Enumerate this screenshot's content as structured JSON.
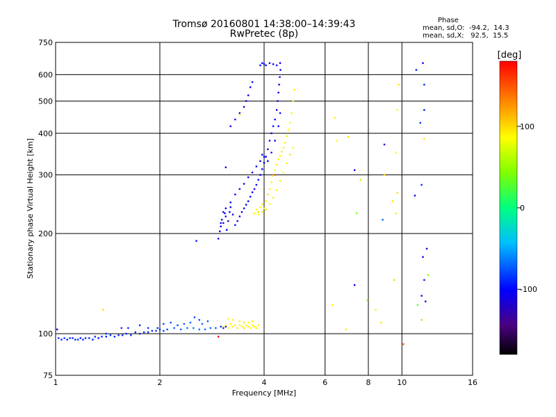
{
  "chart_data": {
    "type": "scatter",
    "title": "Tromsø 20160801 14:38:00–14:39:43",
    "subtitle": "RwPretec (8p)",
    "xlabel": "Frequency [MHz]",
    "ylabel": "Stationary phase Virtual Height [km]",
    "x_scale": "log",
    "y_scale": "log",
    "xlim": [
      1,
      16
    ],
    "ylim": [
      75,
      750
    ],
    "x_ticks": [
      1,
      2,
      4,
      6,
      8,
      10,
      16
    ],
    "x_tick_labels": [
      "1",
      "2",
      "4",
      "6",
      "8",
      "10",
      "16"
    ],
    "y_ticks": [
      75,
      100,
      200,
      300,
      400,
      500,
      600,
      750
    ],
    "y_tick_labels": [
      "75",
      "100",
      "200",
      "300",
      "400",
      "500",
      "600",
      "750"
    ],
    "grid": true,
    "phase_box": {
      "title": "Phase",
      "line_o": "mean, sd,O:  -94.2,  14.3",
      "line_x": "mean, sd,X:   92.5,  15.5"
    },
    "colorbar": {
      "label": "[deg]",
      "range": [
        -180,
        180
      ],
      "ticks": [
        100,
        0,
        -100
      ],
      "tick_labels": [
        "100",
        "0",
        "-100"
      ]
    },
    "series": [
      {
        "name": "O",
        "points": [
          [
            1.02,
            97,
            -90
          ],
          [
            1.04,
            96,
            -92
          ],
          [
            1.06,
            97,
            -88
          ],
          [
            1.08,
            96,
            -95
          ],
          [
            1.1,
            97,
            -90
          ],
          [
            1.12,
            97,
            -93
          ],
          [
            1.14,
            96,
            -91
          ],
          [
            1.16,
            96,
            -89
          ],
          [
            1.18,
            97,
            -94
          ],
          [
            1.2,
            96,
            -92
          ],
          [
            1.22,
            97,
            -90
          ],
          [
            1.25,
            97,
            -91
          ],
          [
            1.28,
            96,
            -93
          ],
          [
            1.3,
            98,
            -88
          ],
          [
            1.33,
            97,
            -95
          ],
          [
            1.36,
            98,
            -90
          ],
          [
            1.4,
            98,
            -92
          ],
          [
            1.44,
            99,
            -89
          ],
          [
            1.48,
            98,
            -94
          ],
          [
            1.52,
            99,
            -91
          ],
          [
            1.56,
            99,
            -90
          ],
          [
            1.6,
            100,
            -92
          ],
          [
            1.65,
            99,
            -87
          ],
          [
            1.7,
            101,
            -93
          ],
          [
            1.75,
            100,
            -90
          ],
          [
            1.8,
            101,
            -88
          ],
          [
            1.85,
            101,
            -92
          ],
          [
            1.9,
            102,
            -90
          ],
          [
            1.95,
            102,
            -86
          ],
          [
            2.0,
            103,
            -84
          ],
          [
            2.05,
            102,
            -80
          ],
          [
            2.1,
            103,
            -78
          ],
          [
            2.2,
            104,
            -72
          ],
          [
            2.3,
            103,
            -70
          ],
          [
            2.4,
            104,
            -66
          ],
          [
            2.5,
            104,
            -62
          ],
          [
            2.6,
            103,
            -64
          ],
          [
            2.7,
            103,
            -66
          ],
          [
            2.8,
            104,
            -70
          ],
          [
            2.9,
            104,
            -74
          ],
          [
            3.0,
            105,
            -88
          ],
          [
            3.05,
            104,
            -95
          ],
          [
            3.1,
            105,
            -100
          ],
          [
            1.01,
            103,
            -100
          ],
          [
            1.4,
            100,
            -85
          ],
          [
            1.55,
            104,
            -88
          ],
          [
            1.62,
            104,
            -92
          ],
          [
            1.75,
            106,
            -90
          ],
          [
            1.85,
            104,
            -85
          ],
          [
            1.97,
            104,
            -90
          ],
          [
            2.05,
            107,
            -82
          ],
          [
            2.15,
            108,
            -78
          ],
          [
            2.25,
            106,
            -80
          ],
          [
            2.35,
            107,
            -75
          ],
          [
            2.45,
            108,
            -70
          ],
          [
            2.52,
            112,
            -80
          ],
          [
            2.6,
            110,
            -76
          ],
          [
            2.65,
            107,
            -72
          ],
          [
            2.75,
            109,
            -74
          ],
          [
            2.95,
            193,
            -110
          ],
          [
            2.98,
            203,
            -108
          ],
          [
            3.0,
            210,
            -112
          ],
          [
            3.02,
            220,
            -106
          ],
          [
            3.05,
            215,
            -118
          ],
          [
            3.08,
            230,
            -104
          ],
          [
            3.1,
            225,
            -112
          ],
          [
            3.12,
            205,
            -100
          ],
          [
            3.15,
            218,
            -120
          ],
          [
            3.18,
            232,
            -108
          ],
          [
            3.2,
            240,
            -104
          ],
          [
            3.25,
            228,
            -114
          ],
          [
            3.3,
            212,
            -106
          ],
          [
            3.35,
            218,
            -110
          ],
          [
            3.4,
            225,
            -104
          ],
          [
            3.45,
            232,
            -108
          ],
          [
            3.5,
            238,
            -100
          ],
          [
            3.55,
            244,
            -104
          ],
          [
            3.6,
            250,
            -110
          ],
          [
            3.65,
            258,
            -98
          ],
          [
            3.7,
            266,
            -104
          ],
          [
            3.75,
            272,
            -108
          ],
          [
            3.8,
            280,
            -100
          ],
          [
            3.85,
            290,
            -96
          ],
          [
            3.9,
            300,
            -104
          ],
          [
            3.95,
            312,
            -100
          ],
          [
            4.0,
            326,
            -98
          ],
          [
            4.05,
            340,
            -104
          ],
          [
            4.1,
            358,
            -100
          ],
          [
            4.15,
            380,
            -96
          ],
          [
            4.2,
            400,
            -102
          ],
          [
            4.25,
            420,
            -98
          ],
          [
            4.3,
            440,
            -100
          ],
          [
            4.35,
            470,
            -104
          ],
          [
            4.38,
            500,
            -98
          ],
          [
            4.4,
            530,
            -100
          ],
          [
            4.42,
            560,
            -102
          ],
          [
            4.44,
            590,
            -96
          ],
          [
            4.46,
            620,
            -100
          ],
          [
            3.0,
            215,
            -106
          ],
          [
            3.05,
            232,
            -110
          ],
          [
            3.1,
            238,
            -104
          ],
          [
            3.2,
            248,
            -108
          ],
          [
            3.3,
            262,
            -100
          ],
          [
            3.4,
            272,
            -106
          ],
          [
            3.5,
            282,
            -104
          ],
          [
            3.6,
            295,
            -100
          ],
          [
            3.7,
            305,
            -106
          ],
          [
            3.8,
            318,
            -100
          ],
          [
            3.9,
            330,
            -104
          ],
          [
            3.95,
            345,
            -98
          ],
          [
            4.0,
            340,
            -106
          ],
          [
            4.1,
            330,
            -102
          ],
          [
            4.2,
            350,
            -98
          ],
          [
            4.3,
            380,
            -104
          ],
          [
            4.4,
            420,
            -100
          ],
          [
            4.45,
            460,
            -96
          ],
          [
            3.2,
            420,
            -104
          ],
          [
            3.3,
            440,
            -100
          ],
          [
            3.4,
            460,
            -106
          ],
          [
            3.5,
            480,
            -102
          ],
          [
            3.55,
            500,
            -108
          ],
          [
            3.6,
            520,
            -100
          ],
          [
            3.65,
            550,
            -104
          ],
          [
            3.7,
            570,
            -98
          ],
          [
            3.9,
            640,
            -100
          ],
          [
            3.95,
            650,
            -104
          ],
          [
            4.0,
            645,
            -98
          ],
          [
            4.05,
            640,
            -102
          ],
          [
            4.15,
            650,
            -100
          ],
          [
            4.25,
            645,
            -106
          ],
          [
            4.35,
            640,
            -100
          ],
          [
            4.45,
            650,
            -104
          ],
          [
            3.1,
            316,
            -110
          ],
          [
            2.55,
            190,
            -96
          ],
          [
            11.0,
            620,
            -95
          ],
          [
            11.5,
            650,
            -100
          ],
          [
            11.6,
            560,
            -90
          ],
          [
            11.3,
            430,
            -85
          ],
          [
            11.6,
            470,
            -95
          ],
          [
            11.4,
            280,
            -90
          ],
          [
            11.8,
            180,
            -110
          ],
          [
            11.5,
            170,
            -100
          ],
          [
            11.6,
            145,
            -95
          ],
          [
            11.4,
            130,
            -100
          ],
          [
            11.7,
            125,
            -120
          ],
          [
            7.3,
            310,
            -110
          ],
          [
            8.9,
            370,
            -110
          ],
          [
            8.8,
            220,
            -70
          ],
          [
            7.3,
            140,
            -110
          ],
          [
            10.9,
            260,
            -100
          ]
        ]
      },
      {
        "name": "X",
        "points": [
          [
            3.05,
            105,
            90
          ],
          [
            3.1,
            106,
            95
          ],
          [
            3.15,
            104,
            88
          ],
          [
            3.2,
            107,
            92
          ],
          [
            3.25,
            105,
            90
          ],
          [
            3.3,
            106,
            96
          ],
          [
            3.35,
            104,
            93
          ],
          [
            3.4,
            106,
            89
          ],
          [
            3.45,
            105,
            92
          ],
          [
            3.5,
            104,
            95
          ],
          [
            3.55,
            106,
            90
          ],
          [
            3.6,
            105,
            93
          ],
          [
            3.65,
            104,
            88
          ],
          [
            3.7,
            106,
            91
          ],
          [
            3.75,
            105,
            94
          ],
          [
            3.8,
            104,
            90
          ],
          [
            3.85,
            106,
            92
          ],
          [
            3.15,
            111,
            85
          ],
          [
            3.25,
            110,
            92
          ],
          [
            3.4,
            109,
            88
          ],
          [
            3.5,
            108,
            94
          ],
          [
            3.6,
            108,
            86
          ],
          [
            3.7,
            109,
            92
          ],
          [
            3.75,
            230,
            92
          ],
          [
            3.8,
            236,
            88
          ],
          [
            3.85,
            232,
            95
          ],
          [
            3.9,
            240,
            90
          ],
          [
            3.95,
            245,
            93
          ],
          [
            4.0,
            238,
            88
          ],
          [
            4.05,
            250,
            92
          ],
          [
            4.1,
            262,
            95
          ],
          [
            4.15,
            272,
            90
          ],
          [
            4.2,
            285,
            93
          ],
          [
            4.25,
            298,
            88
          ],
          [
            4.3,
            310,
            92
          ],
          [
            4.35,
            322,
            95
          ],
          [
            4.4,
            334,
            90
          ],
          [
            4.45,
            342,
            88
          ],
          [
            4.5,
            352,
            93
          ],
          [
            4.55,
            362,
            90
          ],
          [
            4.6,
            375,
            92
          ],
          [
            4.65,
            392,
            95
          ],
          [
            4.7,
            410,
            90
          ],
          [
            4.75,
            430,
            88
          ],
          [
            4.8,
            460,
            92
          ],
          [
            4.85,
            500,
            90
          ],
          [
            4.9,
            540,
            94
          ],
          [
            3.85,
            228,
            86
          ],
          [
            3.95,
            232,
            90
          ],
          [
            4.05,
            236,
            94
          ],
          [
            4.15,
            245,
            88
          ],
          [
            4.25,
            256,
            92
          ],
          [
            4.35,
            270,
            90
          ],
          [
            4.45,
            288,
            93
          ],
          [
            4.55,
            305,
            88
          ],
          [
            4.65,
            325,
            92
          ],
          [
            4.75,
            345,
            95
          ],
          [
            4.85,
            362,
            90
          ],
          [
            3.4,
            455,
            80
          ],
          [
            2.95,
            98,
            180
          ],
          [
            1.37,
            118,
            100
          ],
          [
            4.3,
            300,
            150
          ],
          [
            6.4,
            445,
            92
          ],
          [
            6.5,
            380,
            88
          ],
          [
            7.0,
            390,
            100
          ],
          [
            6.3,
            122,
            90
          ],
          [
            6.9,
            103,
            95
          ],
          [
            7.6,
            290,
            60
          ],
          [
            7.4,
            230,
            40
          ],
          [
            7.95,
            126,
            40
          ],
          [
            8.4,
            118,
            75
          ],
          [
            8.7,
            108,
            95
          ],
          [
            8.9,
            300,
            100
          ],
          [
            9.4,
            250,
            98
          ],
          [
            9.8,
            560,
            95
          ],
          [
            9.7,
            470,
            92
          ],
          [
            9.6,
            350,
            90
          ],
          [
            9.7,
            265,
            96
          ],
          [
            9.6,
            230,
            70
          ],
          [
            9.5,
            145,
            60
          ],
          [
            10.1,
            93,
            150
          ],
          [
            11.6,
            385,
            95
          ],
          [
            11.4,
            110,
            50
          ],
          [
            11.9,
            150,
            40
          ],
          [
            11.1,
            122,
            30
          ]
        ]
      }
    ]
  }
}
